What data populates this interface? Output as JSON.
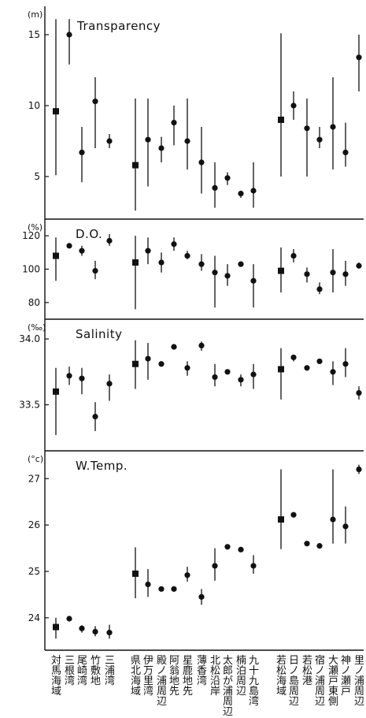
{
  "categories": [
    {
      "group": 0,
      "text": "対馬海域"
    },
    {
      "group": 0,
      "text": "三根湾"
    },
    {
      "group": 0,
      "text": "尾崎湾"
    },
    {
      "group": 0,
      "text": "竹敷地"
    },
    {
      "group": 0,
      "text": "三浦湾"
    },
    {
      "group": 1,
      "text": "県北海域"
    },
    {
      "group": 1,
      "text": "伊万里湾"
    },
    {
      "group": 1,
      "text": "殿ノ浦周辺"
    },
    {
      "group": 1,
      "text": "阿翁地先"
    },
    {
      "group": 1,
      "text": "星鹿地先"
    },
    {
      "group": 1,
      "text": "薄香湾"
    },
    {
      "group": 1,
      "text": "北松沿岸"
    },
    {
      "group": 1,
      "text": "太郎が浦周辺"
    },
    {
      "group": 1,
      "text": "楠泊周辺"
    },
    {
      "group": 1,
      "text": "九十九島湾"
    },
    {
      "group": 2,
      "text": "若松海域"
    },
    {
      "group": 2,
      "text": "日ノ島周辺"
    },
    {
      "group": 2,
      "text": "若松港"
    },
    {
      "group": 2,
      "text": "宿ノ浦周辺"
    },
    {
      "group": 2,
      "text": "大瀬戸東側"
    },
    {
      "group": 2,
      "text": "神ノ瀬戸"
    },
    {
      "group": 2,
      "text": "里ノ浦周辺"
    }
  ],
  "chart_data": [
    {
      "type": "scatter",
      "title": "Transparency",
      "unit_label": "(m)",
      "ylim": [
        2,
        17
      ],
      "yticks": [
        5,
        10,
        15
      ],
      "points": [
        {
          "mean": 9.6,
          "min": 5.1,
          "max": 16.1,
          "marker": "square"
        },
        {
          "mean": 15.0,
          "min": 12.9,
          "max": 16.1,
          "marker": "circle"
        },
        {
          "mean": 6.7,
          "min": 4.6,
          "max": 8.5,
          "marker": "circle"
        },
        {
          "mean": 10.3,
          "min": 7.0,
          "max": 12.0,
          "marker": "circle"
        },
        {
          "mean": 7.5,
          "min": 7.0,
          "max": 8.0,
          "marker": "circle"
        },
        {
          "mean": 5.8,
          "min": 2.6,
          "max": 10.5,
          "marker": "square"
        },
        {
          "mean": 7.6,
          "min": 4.3,
          "max": 10.5,
          "marker": "circle"
        },
        {
          "mean": 7.0,
          "min": 6.0,
          "max": 7.8,
          "marker": "circle"
        },
        {
          "mean": 8.8,
          "min": 7.2,
          "max": 10.0,
          "marker": "circle"
        },
        {
          "mean": 7.5,
          "min": 5.5,
          "max": 10.5,
          "marker": "circle"
        },
        {
          "mean": 6.0,
          "min": 3.8,
          "max": 8.5,
          "marker": "circle"
        },
        {
          "mean": 4.2,
          "min": 2.8,
          "max": 6.0,
          "marker": "circle"
        },
        {
          "mean": 4.9,
          "min": 4.4,
          "max": 5.3,
          "marker": "circle"
        },
        {
          "mean": 3.8,
          "min": 3.5,
          "max": 4.0,
          "marker": "circle"
        },
        {
          "mean": 4.0,
          "min": 2.8,
          "max": 6.0,
          "marker": "circle"
        },
        {
          "mean": 9.0,
          "min": 5.0,
          "max": 15.1,
          "marker": "square"
        },
        {
          "mean": 10.0,
          "min": 9.0,
          "max": 11.0,
          "marker": "circle"
        },
        {
          "mean": 8.4,
          "min": 5.0,
          "max": 10.5,
          "marker": "circle"
        },
        {
          "mean": 7.6,
          "min": 7.0,
          "max": 8.5,
          "marker": "circle"
        },
        {
          "mean": 8.5,
          "min": 5.5,
          "max": 12.0,
          "marker": "circle"
        },
        {
          "mean": 6.7,
          "min": 5.7,
          "max": 8.8,
          "marker": "circle"
        },
        {
          "mean": 13.4,
          "min": 11.0,
          "max": 15.0,
          "marker": "circle"
        }
      ]
    },
    {
      "type": "scatter",
      "title": "D.O.",
      "unit_label": "(%)",
      "ylim": [
        70,
        130
      ],
      "yticks": [
        80,
        100,
        120
      ],
      "points": [
        {
          "mean": 108,
          "min": 93,
          "max": 119,
          "marker": "square"
        },
        {
          "mean": 114,
          "min": 113,
          "max": 115,
          "marker": "circle"
        },
        {
          "mean": 111,
          "min": 108,
          "max": 114,
          "marker": "circle"
        },
        {
          "mean": 99,
          "min": 94,
          "max": 105,
          "marker": "circle"
        },
        {
          "mean": 117,
          "min": 114,
          "max": 121,
          "marker": "circle"
        },
        {
          "mean": 104,
          "min": 76,
          "max": 120,
          "marker": "square"
        },
        {
          "mean": 111,
          "min": 103,
          "max": 119,
          "marker": "circle"
        },
        {
          "mean": 104,
          "min": 98,
          "max": 110,
          "marker": "circle"
        },
        {
          "mean": 115,
          "min": 111,
          "max": 119,
          "marker": "circle"
        },
        {
          "mean": 108,
          "min": 106,
          "max": 111,
          "marker": "circle"
        },
        {
          "mean": 103,
          "min": 99,
          "max": 109,
          "marker": "circle"
        },
        {
          "mean": 98,
          "min": 77,
          "max": 108,
          "marker": "circle"
        },
        {
          "mean": 96,
          "min": 90,
          "max": 103,
          "marker": "circle"
        },
        {
          "mean": 103,
          "min": 102,
          "max": 104,
          "marker": "circle"
        },
        {
          "mean": 93,
          "min": 77,
          "max": 103,
          "marker": "circle"
        },
        {
          "mean": 99,
          "min": 86,
          "max": 113,
          "marker": "square"
        },
        {
          "mean": 108,
          "min": 104,
          "max": 112,
          "marker": "circle"
        },
        {
          "mean": 97,
          "min": 92,
          "max": 101,
          "marker": "circle"
        },
        {
          "mean": 88,
          "min": 85,
          "max": 92,
          "marker": "circle"
        },
        {
          "mean": 98,
          "min": 86,
          "max": 112,
          "marker": "circle"
        },
        {
          "mean": 97,
          "min": 90,
          "max": 105,
          "marker": "circle"
        },
        {
          "mean": 102,
          "min": 101,
          "max": 104,
          "marker": "circle"
        }
      ]
    },
    {
      "type": "scatter",
      "title": "Salinity",
      "unit_label": "(‰)",
      "ylim": [
        33.15,
        34.15
      ],
      "yticks": [
        33.5,
        34.0
      ],
      "ytick_labels": [
        "33.5",
        "34.0"
      ],
      "points": [
        {
          "mean": 33.6,
          "min": 33.27,
          "max": 33.78,
          "marker": "square"
        },
        {
          "mean": 33.72,
          "min": 33.65,
          "max": 33.79,
          "marker": "circle"
        },
        {
          "mean": 33.7,
          "min": 33.58,
          "max": 33.78,
          "marker": "circle"
        },
        {
          "mean": 33.41,
          "min": 33.3,
          "max": 33.52,
          "marker": "circle"
        },
        {
          "mean": 33.66,
          "min": 33.53,
          "max": 33.73,
          "marker": "circle"
        },
        {
          "mean": 33.81,
          "min": 33.62,
          "max": 33.99,
          "marker": "square"
        },
        {
          "mean": 33.85,
          "min": 33.69,
          "max": 33.97,
          "marker": "circle"
        },
        {
          "mean": 33.81,
          "min": 33.79,
          "max": 33.83,
          "marker": "circle"
        },
        {
          "mean": 33.94,
          "min": 33.93,
          "max": 33.95,
          "marker": "circle"
        },
        {
          "mean": 33.78,
          "min": 33.72,
          "max": 33.83,
          "marker": "circle"
        },
        {
          "mean": 33.95,
          "min": 33.91,
          "max": 33.98,
          "marker": "circle"
        },
        {
          "mean": 33.71,
          "min": 33.64,
          "max": 33.81,
          "marker": "circle"
        },
        {
          "mean": 33.75,
          "min": 33.74,
          "max": 33.76,
          "marker": "circle"
        },
        {
          "mean": 33.69,
          "min": 33.64,
          "max": 33.73,
          "marker": "circle"
        },
        {
          "mean": 33.73,
          "min": 33.62,
          "max": 33.81,
          "marker": "circle"
        },
        {
          "mean": 33.77,
          "min": 33.54,
          "max": 33.93,
          "marker": "square"
        },
        {
          "mean": 33.86,
          "min": 33.83,
          "max": 33.88,
          "marker": "circle"
        },
        {
          "mean": 33.78,
          "min": 33.77,
          "max": 33.8,
          "marker": "circle"
        },
        {
          "mean": 33.83,
          "min": 33.82,
          "max": 33.84,
          "marker": "circle"
        },
        {
          "mean": 33.75,
          "min": 33.65,
          "max": 33.83,
          "marker": "circle"
        },
        {
          "mean": 33.81,
          "min": 33.71,
          "max": 33.93,
          "marker": "circle"
        },
        {
          "mean": 33.59,
          "min": 33.54,
          "max": 33.64,
          "marker": "circle"
        }
      ]
    },
    {
      "type": "scatter",
      "title": "W.Temp.",
      "unit_label": "(°c)",
      "ylim": [
        23.3,
        27.6
      ],
      "yticks": [
        24,
        25,
        26,
        27
      ],
      "points": [
        {
          "mean": 23.8,
          "min": 23.55,
          "max": 24.0,
          "marker": "square"
        },
        {
          "mean": 23.98,
          "min": 23.93,
          "max": 24.02,
          "marker": "circle"
        },
        {
          "mean": 23.77,
          "min": 23.68,
          "max": 23.84,
          "marker": "circle"
        },
        {
          "mean": 23.7,
          "min": 23.6,
          "max": 23.82,
          "marker": "circle"
        },
        {
          "mean": 23.68,
          "min": 23.55,
          "max": 23.85,
          "marker": "circle"
        },
        {
          "mean": 24.95,
          "min": 24.42,
          "max": 25.52,
          "marker": "square"
        },
        {
          "mean": 24.72,
          "min": 24.45,
          "max": 25.05,
          "marker": "circle"
        },
        {
          "mean": 24.62,
          "min": 24.6,
          "max": 24.65,
          "marker": "circle"
        },
        {
          "mean": 24.62,
          "min": 24.6,
          "max": 24.65,
          "marker": "circle"
        },
        {
          "mean": 24.92,
          "min": 24.78,
          "max": 25.1,
          "marker": "circle"
        },
        {
          "mean": 24.45,
          "min": 24.28,
          "max": 24.62,
          "marker": "circle"
        },
        {
          "mean": 25.12,
          "min": 24.8,
          "max": 25.5,
          "marker": "circle"
        },
        {
          "mean": 25.53,
          "min": 25.5,
          "max": 25.56,
          "marker": "circle"
        },
        {
          "mean": 25.47,
          "min": 25.45,
          "max": 25.5,
          "marker": "circle"
        },
        {
          "mean": 25.12,
          "min": 24.95,
          "max": 25.35,
          "marker": "circle"
        },
        {
          "mean": 26.12,
          "min": 25.48,
          "max": 27.2,
          "marker": "square"
        },
        {
          "mean": 26.22,
          "min": 26.2,
          "max": 26.25,
          "marker": "circle"
        },
        {
          "mean": 25.6,
          "min": 25.58,
          "max": 25.63,
          "marker": "circle"
        },
        {
          "mean": 25.55,
          "min": 25.52,
          "max": 25.58,
          "marker": "circle"
        },
        {
          "mean": 26.12,
          "min": 25.6,
          "max": 27.2,
          "marker": "circle"
        },
        {
          "mean": 25.97,
          "min": 25.6,
          "max": 26.4,
          "marker": "circle"
        },
        {
          "mean": 27.2,
          "min": 27.1,
          "max": 27.3,
          "marker": "circle"
        }
      ]
    }
  ]
}
